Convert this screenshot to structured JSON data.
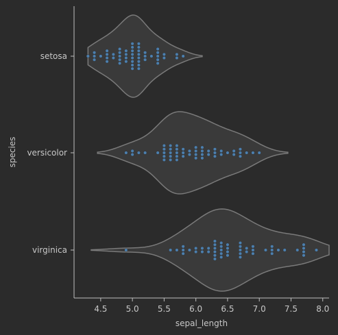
{
  "chart_data": {
    "type": "violin",
    "xlabel": "sepal_length",
    "ylabel": "species",
    "xlim": [
      4.08,
      8.1
    ],
    "x_ticks": [
      4.5,
      5.0,
      5.5,
      6.0,
      6.5,
      7.0,
      7.5,
      8.0
    ],
    "x_tick_labels": [
      "4.5",
      "5.0",
      "5.5",
      "6.0",
      "6.5",
      "7.0",
      "7.5",
      "8.0"
    ],
    "categories": [
      "setosa",
      "versicolor",
      "virginica"
    ],
    "colors": {
      "background": "#2b2b2b",
      "violin_fill": "#3a3a3a",
      "violin_edge": "#7a7a7a",
      "points": "#4c7fae",
      "text": "#c8c8c8",
      "axis": "#bfbfbf"
    },
    "series": [
      {
        "name": "setosa",
        "violin_range": [
          4.3,
          6.1
        ],
        "values": [
          5.1,
          4.9,
          4.7,
          4.6,
          5.0,
          5.4,
          4.6,
          5.0,
          4.4,
          4.9,
          5.4,
          4.8,
          4.8,
          4.3,
          5.8,
          5.7,
          5.4,
          5.1,
          5.7,
          5.1,
          5.4,
          5.1,
          4.6,
          5.1,
          4.8,
          5.0,
          5.0,
          5.2,
          5.2,
          4.7,
          4.8,
          5.4,
          5.2,
          5.5,
          4.9,
          5.0,
          5.5,
          4.9,
          4.4,
          5.1,
          5.0,
          4.5,
          4.4,
          5.0,
          5.1,
          4.8,
          5.1,
          4.6,
          5.3,
          5.0
        ]
      },
      {
        "name": "versicolor",
        "violin_range": [
          4.45,
          7.45
        ],
        "values": [
          7.0,
          6.4,
          6.9,
          5.5,
          6.5,
          5.7,
          6.3,
          4.9,
          6.6,
          5.2,
          5.0,
          5.9,
          6.0,
          6.1,
          5.6,
          6.7,
          5.6,
          5.8,
          6.2,
          5.6,
          5.9,
          6.1,
          6.3,
          6.1,
          6.4,
          6.6,
          6.8,
          6.7,
          6.0,
          5.7,
          5.5,
          5.5,
          5.8,
          6.0,
          5.4,
          6.0,
          6.7,
          6.3,
          5.6,
          5.5,
          5.5,
          6.1,
          5.8,
          5.0,
          5.6,
          5.7,
          5.7,
          6.2,
          5.1,
          5.7
        ]
      },
      {
        "name": "virginica",
        "violin_range": [
          4.35,
          8.1
        ],
        "values": [
          6.3,
          5.8,
          7.1,
          6.3,
          6.5,
          7.6,
          4.9,
          7.3,
          6.7,
          7.2,
          6.5,
          6.4,
          6.8,
          5.7,
          5.8,
          6.4,
          6.5,
          7.7,
          7.7,
          6.0,
          6.9,
          5.6,
          7.7,
          6.3,
          6.7,
          7.2,
          6.2,
          6.1,
          6.4,
          7.2,
          7.4,
          7.9,
          6.4,
          6.3,
          6.1,
          7.7,
          6.3,
          6.4,
          6.0,
          6.9,
          6.7,
          6.9,
          5.8,
          6.8,
          6.7,
          6.7,
          6.3,
          6.5,
          6.2,
          5.9
        ]
      }
    ]
  }
}
